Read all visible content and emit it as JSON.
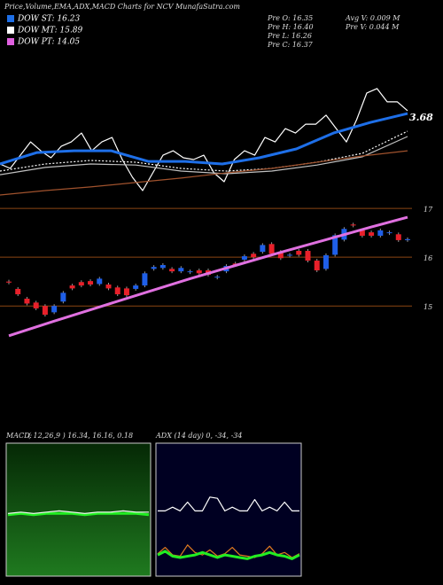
{
  "title": "Price,Volume,EMA,ADX,MACD Charts for NCV MunafaSutra.com",
  "legend": [
    {
      "label": "DOW ST: 16.23",
      "color": "#1e6fe8"
    },
    {
      "label": "DOW MT: 15.89",
      "color": "#ffffff"
    },
    {
      "label": "DOW PT: 14.05",
      "color": "#e060e0"
    }
  ],
  "quote_left": [
    "Pre  O: 16.35",
    "Pre  H: 16.40",
    "Pre  L: 16.26",
    "Pre  C: 16.37"
  ],
  "quote_right": [
    "Avg V: 0.009 M",
    "Pre  V: 0.044  M"
  ],
  "chart_data": [
    {
      "type": "line",
      "label": "3.68",
      "ylim": [
        0,
        100
      ],
      "series": [
        {
          "color": "#ffffff",
          "values": [
            21.6,
            18.9,
            27,
            35.1,
            29.7,
            25.4,
            32.4,
            35.1,
            40.5,
            29.7,
            35.1,
            37.8,
            24.3,
            13.5,
            5.4,
            16.2,
            27,
            29.7,
            25.4,
            24.3,
            27,
            16.2,
            10.8,
            24.3,
            29.7,
            27,
            37.8,
            35.1,
            43.2,
            40.5,
            45.9,
            45.9,
            51.4,
            43.2,
            35.1,
            48.6,
            64.9,
            67.6,
            59.5,
            59.5,
            54.1
          ]
        },
        {
          "color": "#ffffff",
          "dashed": true,
          "values": [
            17.3,
            21.6,
            23.8,
            22.7,
            18.9,
            17.3,
            18.9,
            22.7,
            28.1,
            41.6
          ]
        },
        {
          "color": "#c0c0c0",
          "values": [
            15.1,
            19.5,
            21.6,
            21,
            17.3,
            15.7,
            17.3,
            21,
            26,
            38.4
          ]
        },
        {
          "color": "#1e6fe8",
          "width": 3,
          "values": [
            21.6,
            28.6,
            29.7,
            29.7,
            23.2,
            23.2,
            21.6,
            25.4,
            30.8,
            40.5,
            47,
            52.4
          ]
        },
        {
          "color": "#a0522d",
          "values": [
            2.7,
            5.4,
            7.6,
            10.3,
            13,
            16.2,
            18.9,
            22.7,
            26.5,
            29.7
          ]
        }
      ]
    },
    {
      "type": "candlestick",
      "ylim": [
        12.55,
        17.13
      ],
      "yticks": [
        15,
        16,
        17
      ],
      "grid": true,
      "up_color": "#1f5fe8",
      "down_color": "#e8202a",
      "open": [
        15.5,
        15.35,
        15.15,
        15.07,
        15.0,
        14.87,
        15.09,
        15.42,
        15.49,
        15.51,
        15.45,
        15.44,
        15.38,
        15.36,
        15.35,
        15.42,
        15.76,
        15.78,
        15.76,
        15.71,
        15.71,
        15.73,
        15.73,
        15.6,
        15.71,
        15.87,
        15.95,
        16.07,
        16.11,
        16.27,
        16.11,
        16.05,
        16.13,
        16.13,
        15.93,
        15.76,
        16.05,
        16.36,
        16.67,
        16.55,
        16.51,
        16.44,
        16.51,
        16.47,
        16.35
      ],
      "close": [
        15.48,
        15.24,
        15.05,
        14.95,
        14.82,
        15.0,
        15.27,
        15.36,
        15.42,
        15.44,
        15.56,
        15.36,
        15.24,
        15.22,
        15.42,
        15.67,
        15.8,
        15.84,
        15.71,
        15.78,
        15.71,
        15.67,
        15.64,
        15.6,
        15.82,
        15.84,
        16.02,
        16.0,
        16.25,
        16.07,
        15.98,
        16.05,
        16.05,
        15.93,
        15.73,
        16.04,
        16.45,
        16.58,
        16.65,
        16.44,
        16.44,
        16.55,
        16.51,
        16.35,
        16.37
      ],
      "series": [
        {
          "color": "#e070e0",
          "width": 3,
          "x": [
            0,
            5,
            10,
            15,
            20,
            25,
            30,
            35,
            40,
            44
          ],
          "values": [
            14.39,
            14.69,
            14.98,
            15.27,
            15.56,
            15.83,
            16.1,
            16.36,
            16.62,
            16.82
          ]
        }
      ]
    },
    {
      "type": "line",
      "label": "MACD:",
      "sublabel": "( 12,26,9 ) 16.34, 16.16, 0.18",
      "ylim": [
        0,
        100
      ],
      "series": [
        {
          "color": "#22ee22",
          "width": 3,
          "values": [
            46,
            47,
            46,
            47,
            47,
            47,
            46,
            47,
            47,
            47,
            47,
            46
          ]
        },
        {
          "color": "#ffffff",
          "values": [
            47,
            48,
            47,
            48,
            49,
            48,
            47,
            48,
            48,
            49,
            48,
            48
          ]
        }
      ]
    },
    {
      "type": "line",
      "label": "ADX",
      "sublabel": "(14  day) 0, -34, -34",
      "ylim": [
        0,
        100
      ],
      "series": [
        {
          "color": "#ffffff",
          "values": [
            49,
            49,
            52,
            49,
            56,
            49,
            49,
            60,
            59,
            49,
            52,
            49,
            49,
            58,
            49,
            52,
            49,
            56,
            49,
            49
          ]
        },
        {
          "color": "#e07a20",
          "values": [
            15,
            20,
            14,
            13,
            22,
            16,
            14,
            18,
            13,
            15,
            20,
            14,
            13,
            12,
            15,
            21,
            14,
            16,
            12,
            15
          ]
        },
        {
          "color": "#22ee22",
          "width": 3,
          "values": [
            14,
            17,
            13,
            12,
            13,
            14,
            16,
            14,
            12,
            14,
            13,
            12,
            11,
            13,
            14,
            16,
            14,
            13,
            11,
            14
          ]
        }
      ]
    }
  ]
}
